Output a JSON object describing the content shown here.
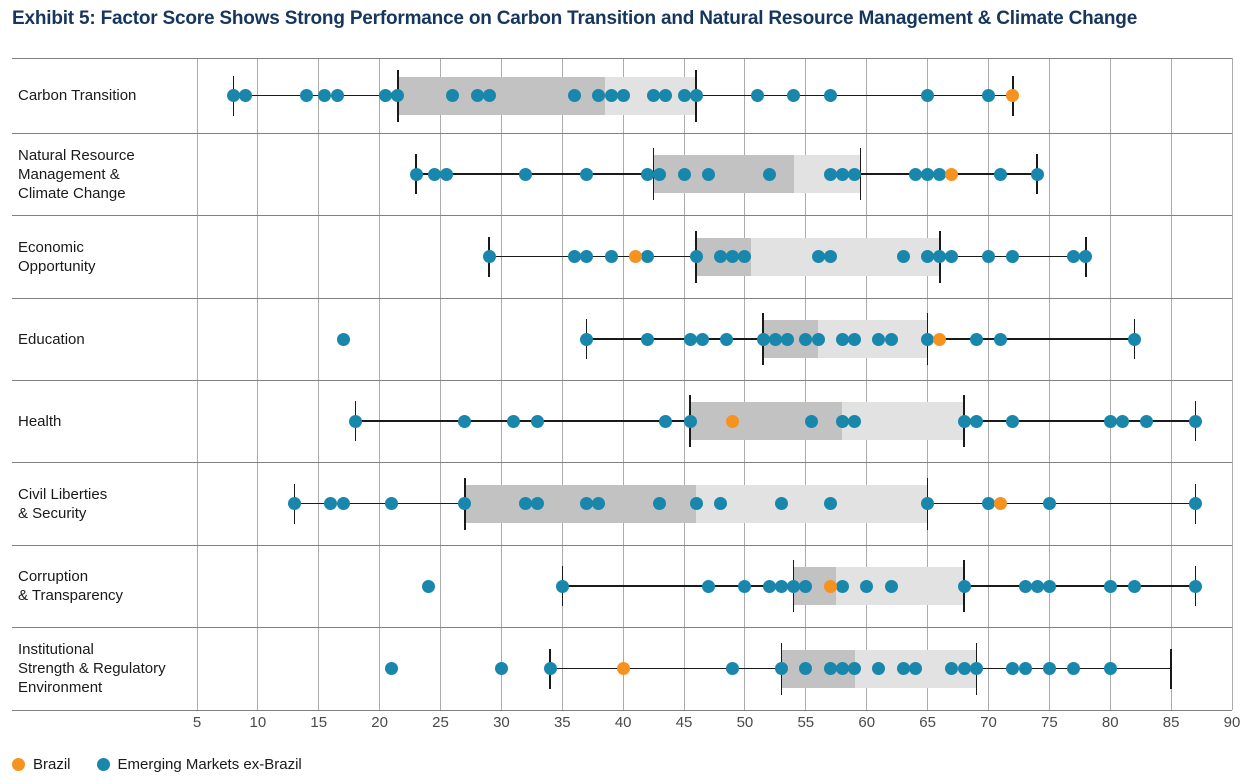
{
  "title": "Exhibit 5: Factor Score Shows Strong Performance on Carbon Transition and Natural Resource Management & Climate Change",
  "legend": {
    "brazil_label": "Brazil",
    "em_label": "Emerging Markets ex-Brazil"
  },
  "colors": {
    "brazil": "#F6921E",
    "em": "#1987AC",
    "box_dark": "#C2C2C2",
    "box_light": "#E2E2E2",
    "title": "#17365D",
    "gridline": "#ABABAB",
    "separator": "#808080",
    "whisker": "#1A1A1A"
  },
  "chart_data": {
    "type": "box-dot",
    "title": "Exhibit 5: Factor Score Shows Strong Performance on Carbon Transition and Natural Resource Management & Climate Change",
    "xlabel": "",
    "ylabel": "",
    "x_ticks": [
      5,
      10,
      15,
      20,
      25,
      30,
      35,
      40,
      45,
      50,
      55,
      60,
      65,
      70,
      75,
      80,
      85,
      90
    ],
    "x_range": [
      5,
      90
    ],
    "grid": "on",
    "legend_position": "bottom-left",
    "series": [
      {
        "name": "Brazil",
        "color_key": "brazil"
      },
      {
        "name": "Emerging Markets ex-Brazil",
        "color_key": "em"
      }
    ],
    "rows": [
      {
        "label": "Carbon Transition",
        "label_lines": [
          "Carbon Transition"
        ],
        "whisker_min": 8,
        "q1": 21.5,
        "median": 38.5,
        "q3": 46,
        "whisker_max": 72,
        "em_points": [
          8,
          9,
          14,
          15.5,
          16.5,
          20.5,
          21.5,
          26,
          28,
          29,
          36,
          38,
          39,
          40,
          42.5,
          43.5,
          45,
          46,
          51,
          54,
          57,
          65,
          70
        ],
        "brazil": 72
      },
      {
        "label": "Natural Resource Management & Climate Change",
        "label_lines": [
          "Natural Resource",
          "Management &",
          "Climate Change"
        ],
        "whisker_min": 23,
        "q1": 42.5,
        "median": 54,
        "q3": 59.5,
        "whisker_max": 74,
        "em_points": [
          23,
          24.5,
          25.5,
          32,
          37,
          42,
          43,
          45,
          47,
          52,
          57,
          58,
          59,
          64,
          65,
          66,
          71,
          74
        ],
        "brazil": 67
      },
      {
        "label": "Economic Opportunity",
        "label_lines": [
          "Economic",
          "Opportunity"
        ],
        "whisker_min": 29,
        "q1": 46,
        "median": 50.5,
        "q3": 66,
        "whisker_max": 78,
        "em_points": [
          29,
          36,
          37,
          39,
          42,
          46,
          48,
          49,
          50,
          56,
          57,
          63,
          65,
          66,
          67,
          70,
          72,
          77,
          78
        ],
        "brazil": 41
      },
      {
        "label": "Education",
        "label_lines": [
          "Education"
        ],
        "whisker_min": 37,
        "q1": 51.5,
        "median": 56,
        "q3": 65,
        "whisker_max": 82,
        "em_points": [
          17,
          37,
          42,
          45.5,
          46.5,
          48.5,
          51.5,
          52.5,
          53.5,
          55,
          56,
          58,
          59,
          61,
          62,
          65,
          69,
          71,
          82
        ],
        "brazil": 66
      },
      {
        "label": "Health",
        "label_lines": [
          "Health"
        ],
        "whisker_min": 18,
        "q1": 45.5,
        "median": 58,
        "q3": 68,
        "whisker_max": 87,
        "em_points": [
          18,
          27,
          31,
          33,
          43.5,
          45.5,
          55.5,
          58,
          59,
          68,
          69,
          72,
          80,
          81,
          83,
          87
        ],
        "brazil": 49
      },
      {
        "label": "Civil Liberties & Security",
        "label_lines": [
          "Civil Liberties",
          "& Security"
        ],
        "whisker_min": 13,
        "q1": 27,
        "median": 46,
        "q3": 65,
        "whisker_max": 87,
        "em_points": [
          13,
          16,
          17,
          21,
          27,
          32,
          33,
          37,
          38,
          43,
          46,
          48,
          53,
          57,
          65,
          70,
          75,
          87
        ],
        "brazil": 71
      },
      {
        "label": "Corruption & Transparency",
        "label_lines": [
          "Corruption",
          "& Transparency"
        ],
        "whisker_min": 35,
        "q1": 54,
        "median": 57.5,
        "q3": 68,
        "whisker_max": 87,
        "em_points": [
          24,
          35,
          47,
          50,
          52,
          53,
          54,
          55,
          58,
          60,
          62,
          68,
          73,
          74,
          75,
          80,
          82,
          87
        ],
        "brazil": 57
      },
      {
        "label": "Institutional Strength & Regulatory Environment",
        "label_lines": [
          "Institutional",
          "Strength & Regulatory",
          "Environment"
        ],
        "whisker_min": 34,
        "q1": 53,
        "median": 59,
        "q3": 69,
        "whisker_max": 85,
        "em_points": [
          21,
          30,
          34,
          49,
          53,
          55,
          57,
          58,
          59,
          61,
          63,
          64,
          67,
          68,
          69,
          72,
          73,
          75,
          77,
          80
        ],
        "brazil": 40
      }
    ]
  }
}
